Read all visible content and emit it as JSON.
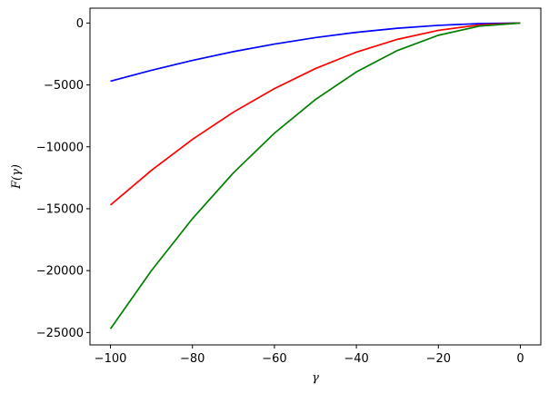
{
  "chart_data": {
    "type": "line",
    "xlabel": "γ",
    "ylabel": "F(γ)",
    "xlim": [
      -105,
      5
    ],
    "ylim": [
      -26000,
      1200
    ],
    "grid": false,
    "x_ticks": [
      -100,
      -80,
      -60,
      -40,
      -20,
      0
    ],
    "x_tick_labels": [
      "−100",
      "−80",
      "−60",
      "−40",
      "−20",
      "0"
    ],
    "y_ticks": [
      0,
      -5000,
      -10000,
      -15000,
      -20000,
      -25000
    ],
    "y_tick_labels": [
      "0",
      "−5000",
      "−10000",
      "−15000",
      "−20000",
      "−25000"
    ],
    "series": [
      {
        "color": "#0000ff",
        "x": [
          -100,
          -90,
          -80,
          -70,
          -60,
          -50,
          -40,
          -30,
          -20,
          -10,
          0
        ],
        "y": [
          -4700,
          -3820,
          -3020,
          -2310,
          -1700,
          -1180,
          -750,
          -420,
          -190,
          -45,
          0
        ]
      },
      {
        "color": "#ff0000",
        "x": [
          -100,
          -90,
          -80,
          -70,
          -60,
          -50,
          -40,
          -30,
          -20,
          -10,
          0
        ],
        "y": [
          -14700,
          -11900,
          -9400,
          -7200,
          -5300,
          -3680,
          -2350,
          -1320,
          -590,
          -150,
          0
        ]
      },
      {
        "color": "#008000",
        "x": [
          -100,
          -90,
          -80,
          -70,
          -60,
          -50,
          -40,
          -30,
          -20,
          -10,
          0
        ],
        "y": [
          -24700,
          -20000,
          -15800,
          -12100,
          -8900,
          -6180,
          -3950,
          -2220,
          -990,
          -250,
          0
        ]
      }
    ]
  }
}
